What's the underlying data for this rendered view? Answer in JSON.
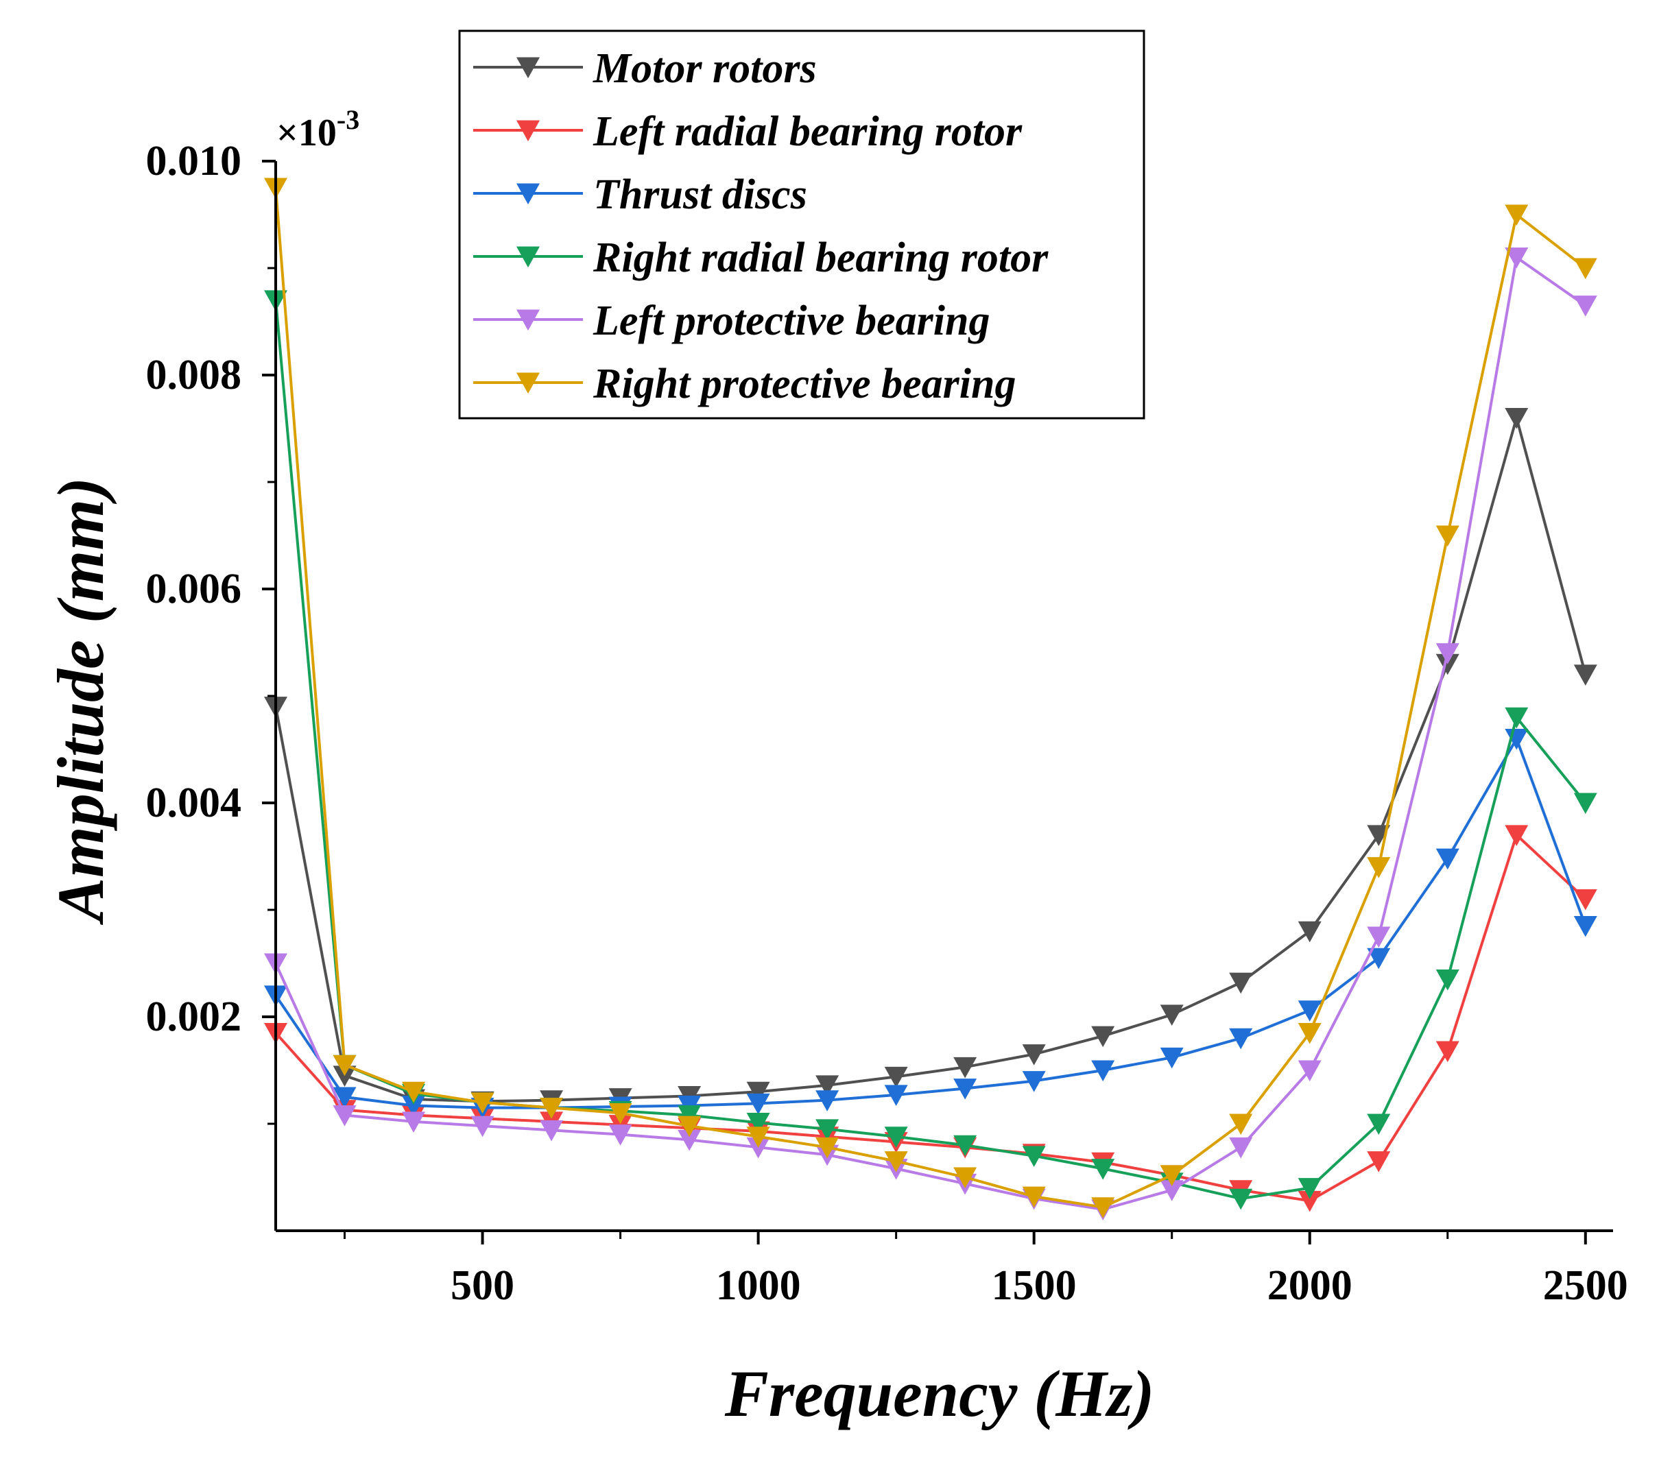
{
  "chart_data": {
    "type": "line",
    "xlabel": "Frequency (Hz)",
    "ylabel": "Amplitude (mm)",
    "y_multiplier": "×10",
    "y_multiplier_exp": "-3",
    "xlim": [
      125,
      2550
    ],
    "ylim": [
      0,
      0.01
    ],
    "x_ticks": [
      500,
      1000,
      1500,
      2000,
      2500
    ],
    "x_tick_labels": [
      "500",
      "1000",
      "1500",
      "2000",
      "2500"
    ],
    "y_ticks": [
      0.002,
      0.004,
      0.006,
      0.008,
      0.01
    ],
    "y_tick_labels": [
      "0.002",
      "0.004",
      "0.006",
      "0.008",
      "0.010"
    ],
    "x": [
      125,
      250,
      375,
      500,
      625,
      750,
      875,
      1000,
      1125,
      1250,
      1375,
      1500,
      1625,
      1750,
      1875,
      2000,
      2125,
      2250,
      2375,
      2500
    ],
    "legend_position": "top-center",
    "marker": "down-triangle",
    "series": [
      {
        "name": "Motor rotors",
        "color": "#505050",
        "values": [
          0.0049,
          0.00145,
          0.00123,
          0.00121,
          0.00122,
          0.00124,
          0.00126,
          0.0013,
          0.00136,
          0.00144,
          0.00153,
          0.00165,
          0.00182,
          0.00202,
          0.00232,
          0.0028,
          0.0037,
          0.0053,
          0.0076,
          0.0052
        ]
      },
      {
        "name": "Left radial bearing rotor",
        "color": "#f0403f",
        "values": [
          0.00185,
          0.00113,
          0.00108,
          0.00105,
          0.00102,
          0.00099,
          0.00096,
          0.00093,
          0.00088,
          0.00083,
          0.00078,
          0.00072,
          0.00064,
          0.00052,
          0.00038,
          0.00028,
          0.00065,
          0.00168,
          0.0037,
          0.0031
        ]
      },
      {
        "name": "Thrust discs",
        "color": "#1f6fd6",
        "values": [
          0.0022,
          0.00125,
          0.00117,
          0.00115,
          0.00115,
          0.00116,
          0.00117,
          0.00119,
          0.00122,
          0.00127,
          0.00133,
          0.0014,
          0.0015,
          0.00162,
          0.0018,
          0.00206,
          0.00255,
          0.00348,
          0.0046,
          0.00285
        ]
      },
      {
        "name": "Right radial bearing rotor",
        "color": "#17a05a",
        "values": [
          0.0087,
          0.00155,
          0.00128,
          0.0012,
          0.00115,
          0.00112,
          0.00108,
          0.00101,
          0.00095,
          0.00088,
          0.0008,
          0.0007,
          0.00058,
          0.00045,
          0.0003,
          0.0004,
          0.001,
          0.00235,
          0.0048,
          0.004
        ]
      },
      {
        "name": "Left protective bearing",
        "color": "#b87ae6",
        "values": [
          0.0025,
          0.00108,
          0.00102,
          0.00098,
          0.00094,
          0.0009,
          0.00085,
          0.00078,
          0.00071,
          0.00058,
          0.00044,
          0.0003,
          0.0002,
          0.00038,
          0.00078,
          0.0015,
          0.00275,
          0.0054,
          0.0091,
          0.00865
        ]
      },
      {
        "name": "Right protective bearing",
        "color": "#d9a000",
        "values": [
          0.00975,
          0.00155,
          0.0013,
          0.0012,
          0.00115,
          0.0011,
          0.00098,
          0.00088,
          0.00078,
          0.00065,
          0.0005,
          0.00032,
          0.00022,
          0.00052,
          0.001,
          0.00185,
          0.0034,
          0.0065,
          0.0095,
          0.009
        ]
      }
    ]
  }
}
